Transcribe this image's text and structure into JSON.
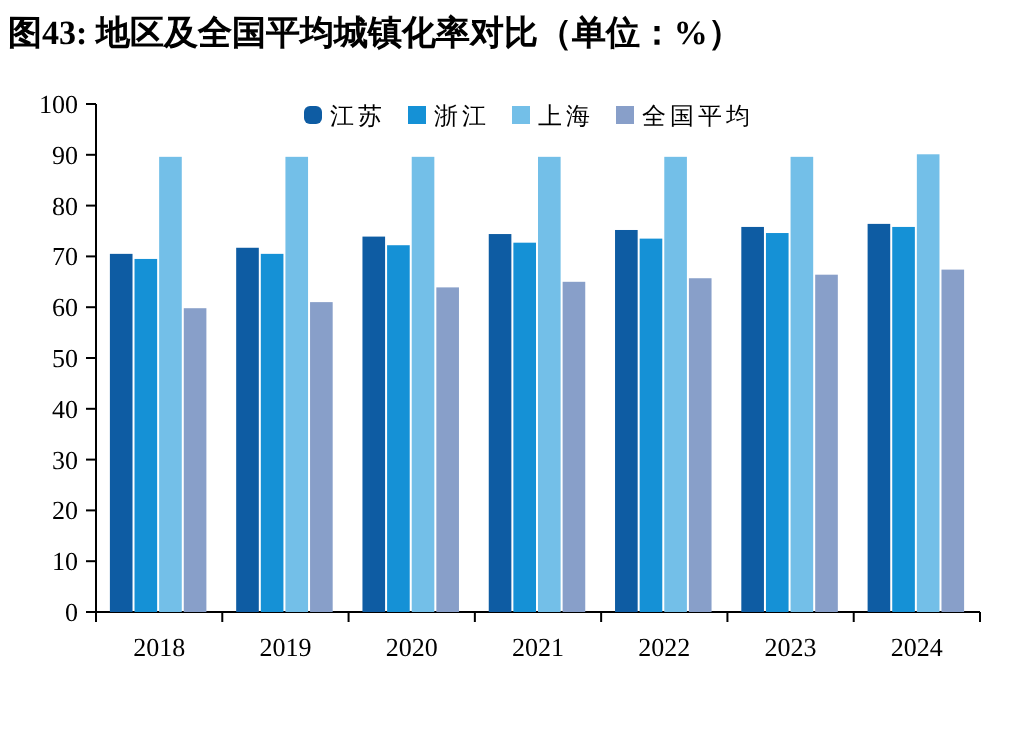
{
  "chart_data": {
    "type": "bar",
    "title": "图43:  地区及全国平均城镇化率对比（单位：%）",
    "categories": [
      "2018",
      "2019",
      "2020",
      "2021",
      "2022",
      "2023",
      "2024"
    ],
    "series": [
      {
        "name": "江苏",
        "color": "#0e5ca3",
        "values": [
          70.5,
          71.7,
          73.9,
          74.4,
          75.2,
          75.8,
          76.4
        ]
      },
      {
        "name": "浙江",
        "color": "#1591d6",
        "values": [
          69.5,
          70.5,
          72.2,
          72.7,
          73.5,
          74.6,
          75.8
        ]
      },
      {
        "name": "上海",
        "color": "#73bfe8",
        "values": [
          89.6,
          89.6,
          89.6,
          89.6,
          89.6,
          89.6,
          90.1
        ]
      },
      {
        "name": "全国平均",
        "color": "#889fc9",
        "values": [
          59.8,
          61.0,
          63.9,
          65.0,
          65.7,
          66.4,
          67.4
        ]
      }
    ],
    "ylim": [
      0,
      100
    ],
    "yticks": [
      0,
      10,
      20,
      30,
      40,
      50,
      60,
      70,
      80,
      90,
      100
    ],
    "legend": "top"
  }
}
